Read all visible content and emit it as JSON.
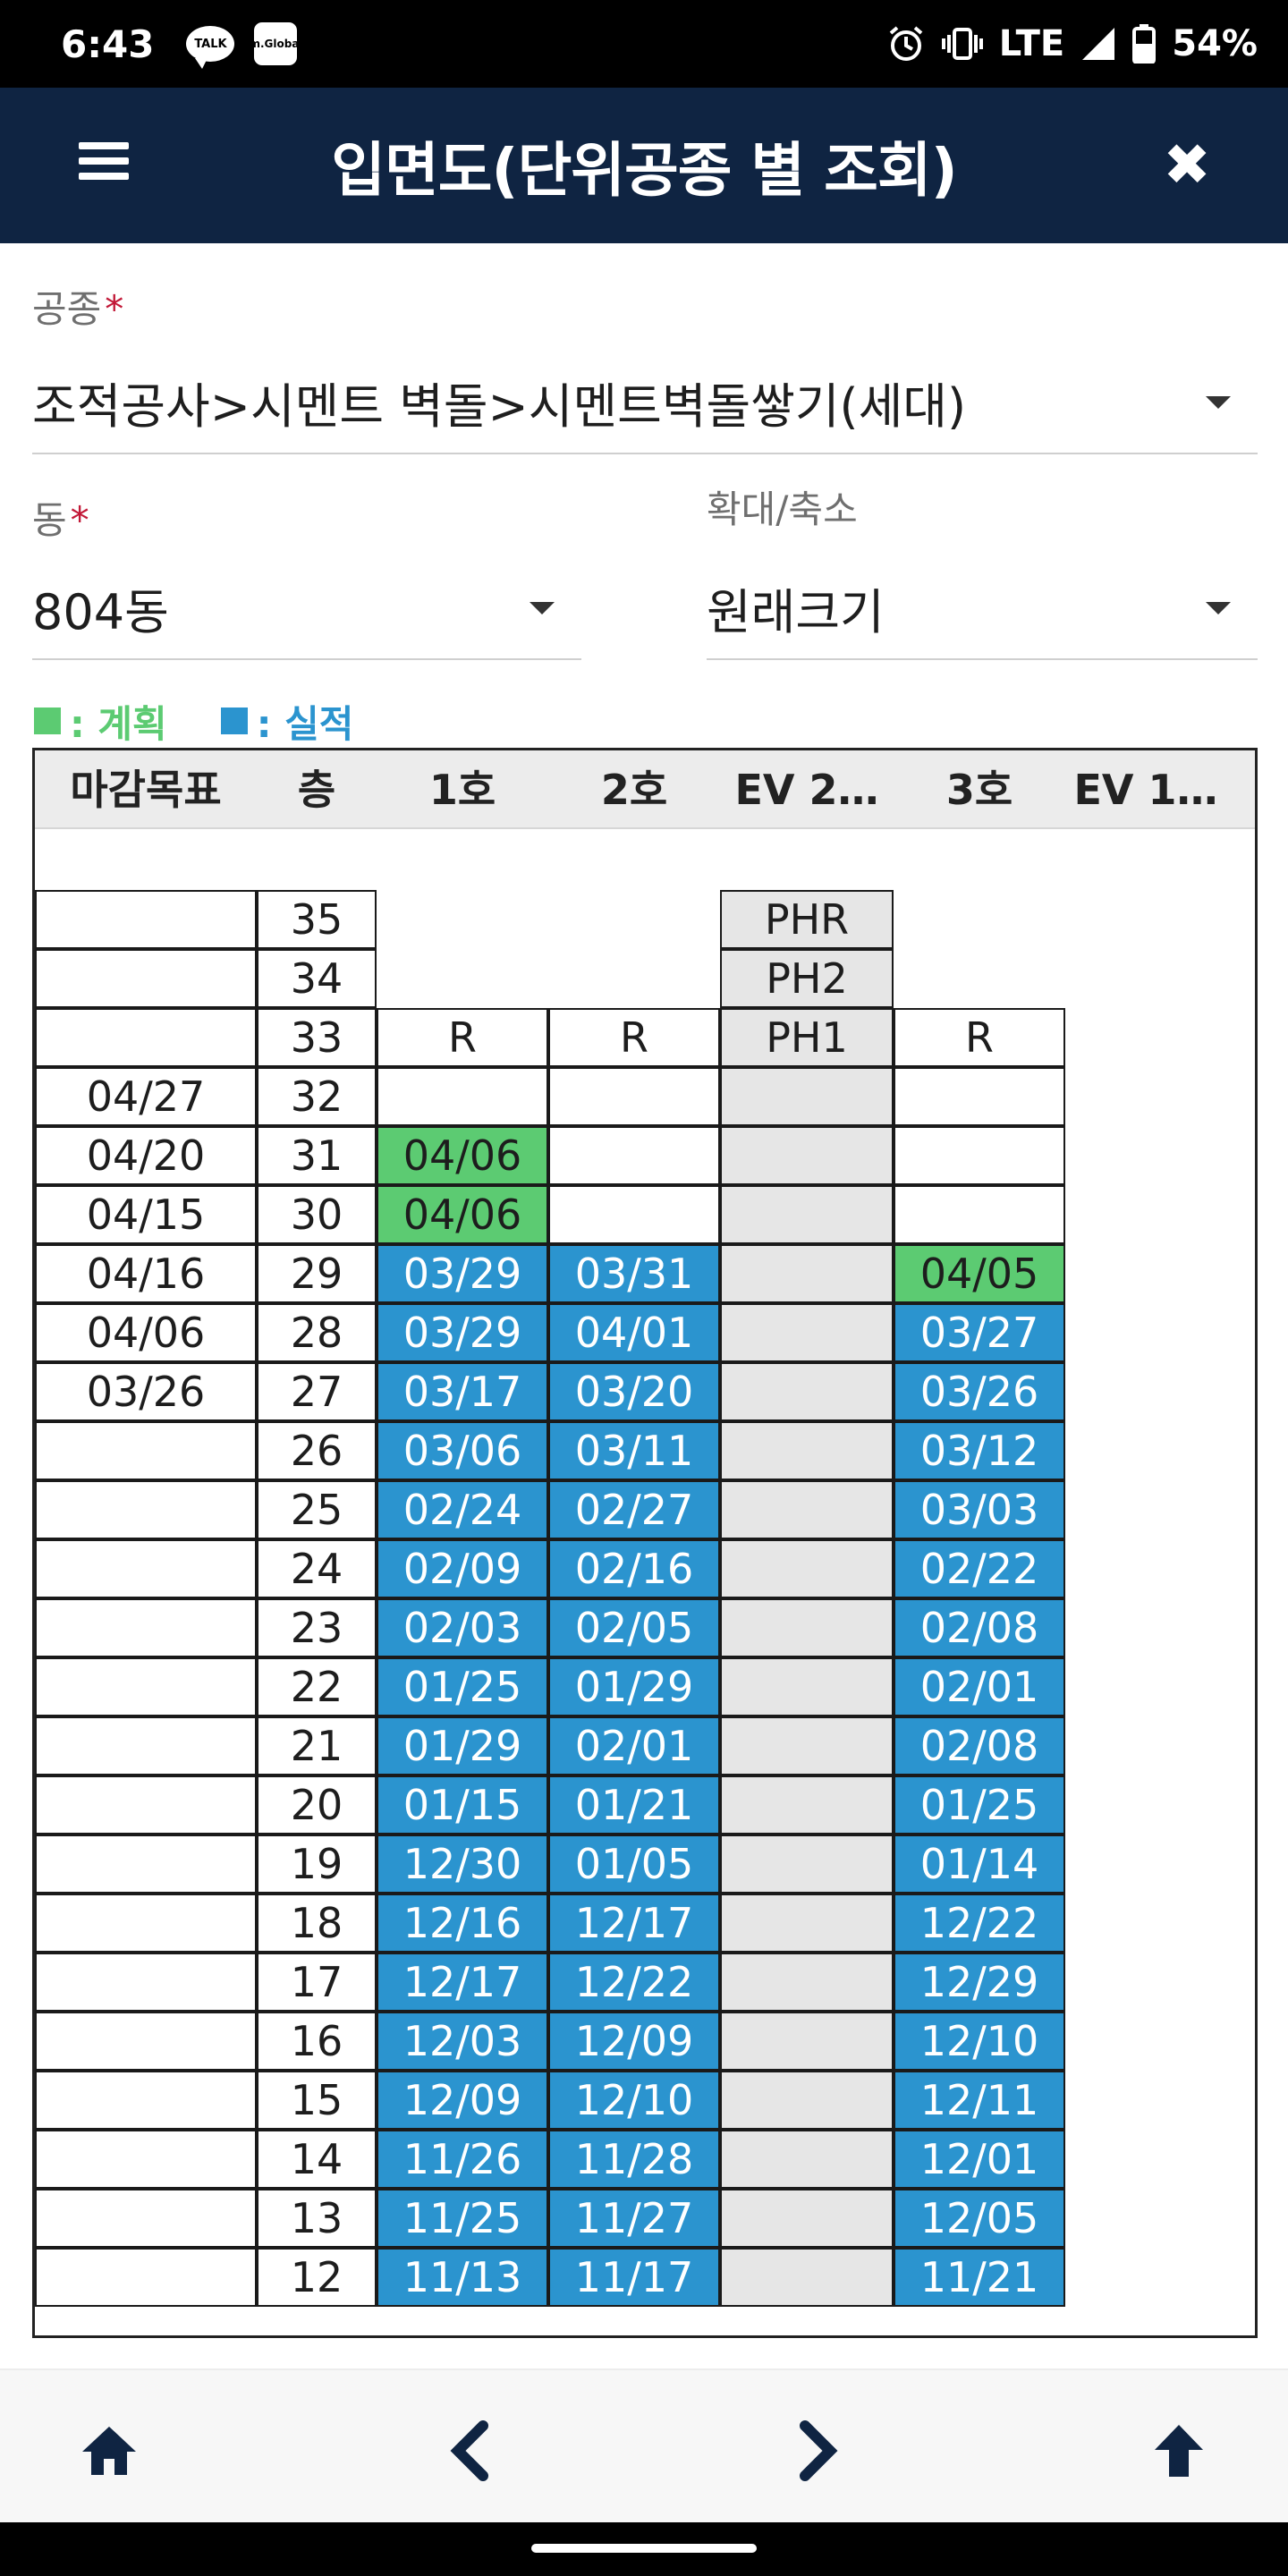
{
  "status_bar": {
    "time": "6:43",
    "apps": [
      {
        "name": "talk-icon",
        "label": "TALK"
      },
      {
        "name": "global-icon",
        "label": "m.Global"
      }
    ],
    "network": "LTE",
    "battery": "54%",
    "icons": [
      "alarm-icon",
      "vibrate-icon",
      "signal-icon",
      "battery-icon"
    ]
  },
  "header": {
    "title": "입면도(단위공종 별 조회)",
    "menu_icon": "hamburger-icon",
    "close_icon": "close-icon",
    "close_glyph": "✖"
  },
  "form": {
    "trade_label": "공종",
    "trade_value": "조적공사>시멘트 벽돌>시멘트벽돌쌓기(세대)",
    "building_label": "동",
    "building_value": "804동",
    "zoom_label": "확대/축소",
    "zoom_value": "원래크기",
    "required_mark": "*"
  },
  "legend": {
    "plan": {
      "label": ": 계획",
      "color": "#5ccb72"
    },
    "actual": {
      "label": ": 실적",
      "color": "#2b94cf"
    }
  },
  "grid": {
    "headers": [
      "마감목표",
      "층",
      "1호",
      "2호",
      "EV 2…",
      "3호",
      "EV 1…"
    ],
    "rows": [
      {
        "target": "",
        "floor": "35",
        "u1": {
          "text": "",
          "status": "none"
        },
        "u2": {
          "text": "",
          "status": "none"
        },
        "ev2": "PHR",
        "u3": {
          "text": "",
          "status": "none"
        }
      },
      {
        "target": "",
        "floor": "34",
        "u1": {
          "text": "",
          "status": "none"
        },
        "u2": {
          "text": "",
          "status": "none"
        },
        "ev2": "PH2",
        "u3": {
          "text": "",
          "status": "none"
        }
      },
      {
        "target": "",
        "floor": "33",
        "u1": {
          "text": "R",
          "status": "empty"
        },
        "u2": {
          "text": "R",
          "status": "empty"
        },
        "ev2": "PH1",
        "u3": {
          "text": "R",
          "status": "empty"
        }
      },
      {
        "target": "04/27",
        "floor": "32",
        "u1": {
          "text": "",
          "status": "empty"
        },
        "u2": {
          "text": "",
          "status": "empty"
        },
        "ev2": "",
        "u3": {
          "text": "",
          "status": "empty"
        }
      },
      {
        "target": "04/20",
        "floor": "31",
        "u1": {
          "text": "04/06",
          "status": "plan"
        },
        "u2": {
          "text": "",
          "status": "empty"
        },
        "ev2": "",
        "u3": {
          "text": "",
          "status": "empty"
        }
      },
      {
        "target": "04/15",
        "floor": "30",
        "u1": {
          "text": "04/06",
          "status": "plan"
        },
        "u2": {
          "text": "",
          "status": "empty"
        },
        "ev2": "",
        "u3": {
          "text": "",
          "status": "empty"
        }
      },
      {
        "target": "04/16",
        "floor": "29",
        "u1": {
          "text": "03/29",
          "status": "actual"
        },
        "u2": {
          "text": "03/31",
          "status": "actual"
        },
        "ev2": "",
        "u3": {
          "text": "04/05",
          "status": "plan"
        }
      },
      {
        "target": "04/06",
        "floor": "28",
        "u1": {
          "text": "03/29",
          "status": "actual"
        },
        "u2": {
          "text": "04/01",
          "status": "actual"
        },
        "ev2": "",
        "u3": {
          "text": "03/27",
          "status": "actual"
        }
      },
      {
        "target": "03/26",
        "floor": "27",
        "u1": {
          "text": "03/17",
          "status": "actual"
        },
        "u2": {
          "text": "03/20",
          "status": "actual"
        },
        "ev2": "",
        "u3": {
          "text": "03/26",
          "status": "actual"
        }
      },
      {
        "target": "",
        "floor": "26",
        "u1": {
          "text": "03/06",
          "status": "actual"
        },
        "u2": {
          "text": "03/11",
          "status": "actual"
        },
        "ev2": "",
        "u3": {
          "text": "03/12",
          "status": "actual"
        }
      },
      {
        "target": "",
        "floor": "25",
        "u1": {
          "text": "02/24",
          "status": "actual"
        },
        "u2": {
          "text": "02/27",
          "status": "actual"
        },
        "ev2": "",
        "u3": {
          "text": "03/03",
          "status": "actual"
        }
      },
      {
        "target": "",
        "floor": "24",
        "u1": {
          "text": "02/09",
          "status": "actual"
        },
        "u2": {
          "text": "02/16",
          "status": "actual"
        },
        "ev2": "",
        "u3": {
          "text": "02/22",
          "status": "actual"
        }
      },
      {
        "target": "",
        "floor": "23",
        "u1": {
          "text": "02/03",
          "status": "actual"
        },
        "u2": {
          "text": "02/05",
          "status": "actual"
        },
        "ev2": "",
        "u3": {
          "text": "02/08",
          "status": "actual"
        }
      },
      {
        "target": "",
        "floor": "22",
        "u1": {
          "text": "01/25",
          "status": "actual"
        },
        "u2": {
          "text": "01/29",
          "status": "actual"
        },
        "ev2": "",
        "u3": {
          "text": "02/01",
          "status": "actual"
        }
      },
      {
        "target": "",
        "floor": "21",
        "u1": {
          "text": "01/29",
          "status": "actual"
        },
        "u2": {
          "text": "02/01",
          "status": "actual"
        },
        "ev2": "",
        "u3": {
          "text": "02/08",
          "status": "actual"
        }
      },
      {
        "target": "",
        "floor": "20",
        "u1": {
          "text": "01/15",
          "status": "actual"
        },
        "u2": {
          "text": "01/21",
          "status": "actual"
        },
        "ev2": "",
        "u3": {
          "text": "01/25",
          "status": "actual"
        }
      },
      {
        "target": "",
        "floor": "19",
        "u1": {
          "text": "12/30",
          "status": "actual"
        },
        "u2": {
          "text": "01/05",
          "status": "actual"
        },
        "ev2": "",
        "u3": {
          "text": "01/14",
          "status": "actual"
        }
      },
      {
        "target": "",
        "floor": "18",
        "u1": {
          "text": "12/16",
          "status": "actual"
        },
        "u2": {
          "text": "12/17",
          "status": "actual"
        },
        "ev2": "",
        "u3": {
          "text": "12/22",
          "status": "actual"
        }
      },
      {
        "target": "",
        "floor": "17",
        "u1": {
          "text": "12/17",
          "status": "actual"
        },
        "u2": {
          "text": "12/22",
          "status": "actual"
        },
        "ev2": "",
        "u3": {
          "text": "12/29",
          "status": "actual"
        }
      },
      {
        "target": "",
        "floor": "16",
        "u1": {
          "text": "12/03",
          "status": "actual"
        },
        "u2": {
          "text": "12/09",
          "status": "actual"
        },
        "ev2": "",
        "u3": {
          "text": "12/10",
          "status": "actual"
        }
      },
      {
        "target": "",
        "floor": "15",
        "u1": {
          "text": "12/09",
          "status": "actual"
        },
        "u2": {
          "text": "12/10",
          "status": "actual"
        },
        "ev2": "",
        "u3": {
          "text": "12/11",
          "status": "actual"
        }
      },
      {
        "target": "",
        "floor": "14",
        "u1": {
          "text": "11/26",
          "status": "actual"
        },
        "u2": {
          "text": "11/28",
          "status": "actual"
        },
        "ev2": "",
        "u3": {
          "text": "12/01",
          "status": "actual"
        }
      },
      {
        "target": "",
        "floor": "13",
        "u1": {
          "text": "11/25",
          "status": "actual"
        },
        "u2": {
          "text": "11/27",
          "status": "actual"
        },
        "ev2": "",
        "u3": {
          "text": "12/05",
          "status": "actual"
        }
      },
      {
        "target": "",
        "floor": "12",
        "u1": {
          "text": "11/13",
          "status": "actual"
        },
        "u2": {
          "text": "11/17",
          "status": "actual"
        },
        "ev2": "",
        "u3": {
          "text": "11/21",
          "status": "actual"
        }
      }
    ]
  },
  "bottom_nav": {
    "items": [
      "home-icon",
      "chevron-left-icon",
      "chevron-right-icon",
      "arrow-up-icon"
    ]
  }
}
